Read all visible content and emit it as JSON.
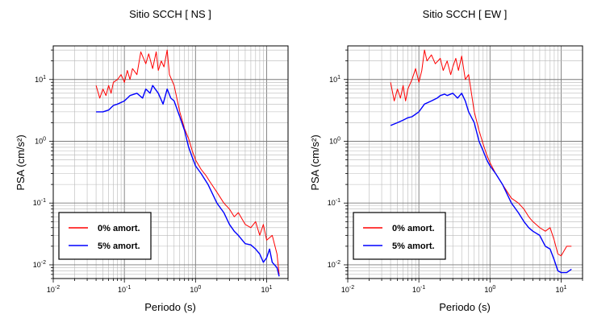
{
  "chart_data": [
    {
      "type": "line",
      "title": "Sitio SCCH [ NS ]",
      "xlabel": "Periodo (s)",
      "ylabel": "PSA (cm/s²)",
      "x_scale": "log",
      "y_scale": "log",
      "xlim": [
        0.01,
        20
      ],
      "ylim": [
        0.006,
        35
      ],
      "x_ticks": [
        {
          "base": "10",
          "exp": "-2"
        },
        {
          "base": "10",
          "exp": "-1"
        },
        {
          "base": "10",
          "exp": "0"
        },
        {
          "base": "10",
          "exp": "1"
        }
      ],
      "y_ticks": [
        {
          "base": "10",
          "exp": "-2"
        },
        {
          "base": "10",
          "exp": "-1"
        },
        {
          "base": "10",
          "exp": "0"
        },
        {
          "base": "10",
          "exp": "1"
        }
      ],
      "grid": true,
      "legend_position": "bottom-left",
      "series": [
        {
          "name": "0% amort.",
          "color": "#ff0000",
          "x": [
            0.04,
            0.045,
            0.05,
            0.055,
            0.06,
            0.065,
            0.07,
            0.08,
            0.09,
            0.1,
            0.11,
            0.12,
            0.13,
            0.15,
            0.17,
            0.2,
            0.22,
            0.25,
            0.28,
            0.3,
            0.33,
            0.36,
            0.4,
            0.43,
            0.5,
            0.6,
            0.7,
            0.8,
            0.9,
            1.0,
            1.2,
            1.4,
            1.6,
            2.0,
            2.5,
            3.0,
            3.5,
            4.0,
            5.0,
            6.0,
            7.0,
            8.0,
            9.0,
            10.0,
            12.0,
            14.0,
            15.0
          ],
          "y": [
            8.0,
            5.0,
            7.0,
            5.5,
            8.0,
            6.0,
            9.0,
            10.0,
            12.0,
            9.0,
            14.0,
            10.0,
            15.0,
            12.0,
            28.0,
            18.0,
            26.0,
            15.0,
            28.0,
            14.0,
            20.0,
            16.0,
            30.0,
            12.0,
            8.0,
            3.0,
            1.6,
            1.1,
            0.7,
            0.5,
            0.35,
            0.28,
            0.22,
            0.15,
            0.1,
            0.08,
            0.06,
            0.07,
            0.045,
            0.04,
            0.05,
            0.03,
            0.045,
            0.025,
            0.03,
            0.015,
            0.007
          ]
        },
        {
          "name": "5% amort.",
          "color": "#0000ff",
          "x": [
            0.04,
            0.05,
            0.06,
            0.07,
            0.08,
            0.1,
            0.12,
            0.15,
            0.18,
            0.2,
            0.23,
            0.25,
            0.3,
            0.35,
            0.4,
            0.45,
            0.5,
            0.6,
            0.7,
            0.8,
            0.9,
            1.0,
            1.2,
            1.5,
            2.0,
            2.5,
            3.0,
            3.5,
            4.0,
            5.0,
            6.0,
            7.0,
            8.0,
            9.0,
            10.0,
            11.0,
            12.0,
            14.0,
            15.0
          ],
          "y": [
            3.0,
            3.0,
            3.2,
            3.8,
            4.0,
            4.5,
            5.5,
            6.0,
            5.0,
            7.0,
            6.0,
            8.0,
            6.0,
            4.0,
            7.0,
            5.0,
            4.5,
            2.5,
            1.5,
            0.8,
            0.55,
            0.4,
            0.3,
            0.2,
            0.1,
            0.07,
            0.045,
            0.035,
            0.03,
            0.022,
            0.021,
            0.018,
            0.015,
            0.011,
            0.013,
            0.018,
            0.011,
            0.009,
            0.0065
          ]
        }
      ]
    },
    {
      "type": "line",
      "title": "Sitio SCCH [ EW ]",
      "xlabel": "Periodo (s)",
      "ylabel": "PSA (cm/s²)",
      "x_scale": "log",
      "y_scale": "log",
      "xlim": [
        0.01,
        20
      ],
      "ylim": [
        0.006,
        35
      ],
      "x_ticks": [
        {
          "base": "10",
          "exp": "-2"
        },
        {
          "base": "10",
          "exp": "-1"
        },
        {
          "base": "10",
          "exp": "0"
        },
        {
          "base": "10",
          "exp": "1"
        }
      ],
      "y_ticks": [
        {
          "base": "10",
          "exp": "-2"
        },
        {
          "base": "10",
          "exp": "-1"
        },
        {
          "base": "10",
          "exp": "0"
        },
        {
          "base": "10",
          "exp": "1"
        }
      ],
      "grid": true,
      "legend_position": "bottom-left",
      "series": [
        {
          "name": "0% amort.",
          "color": "#ff0000",
          "x": [
            0.04,
            0.045,
            0.05,
            0.055,
            0.06,
            0.065,
            0.07,
            0.08,
            0.09,
            0.1,
            0.11,
            0.12,
            0.13,
            0.15,
            0.17,
            0.2,
            0.22,
            0.25,
            0.28,
            0.3,
            0.33,
            0.36,
            0.4,
            0.45,
            0.5,
            0.6,
            0.7,
            0.8,
            0.9,
            1.0,
            1.2,
            1.5,
            2.0,
            2.5,
            3.0,
            3.5,
            4.0,
            5.0,
            6.0,
            7.0,
            8.0,
            9.0,
            10.0,
            12.0,
            14.0
          ],
          "y": [
            9.0,
            4.5,
            7.0,
            5.0,
            8.0,
            4.5,
            7.0,
            10.0,
            15.0,
            9.0,
            14.0,
            30.0,
            20.0,
            25.0,
            18.0,
            22.0,
            14.0,
            20.0,
            12.0,
            16.0,
            22.0,
            14.0,
            24.0,
            10.0,
            12.0,
            3.0,
            1.5,
            0.9,
            0.6,
            0.45,
            0.3,
            0.2,
            0.12,
            0.1,
            0.08,
            0.06,
            0.05,
            0.04,
            0.035,
            0.04,
            0.025,
            0.015,
            0.014,
            0.02,
            0.02
          ]
        },
        {
          "name": "5% amort.",
          "color": "#0000ff",
          "x": [
            0.04,
            0.05,
            0.06,
            0.07,
            0.08,
            0.1,
            0.12,
            0.15,
            0.18,
            0.2,
            0.23,
            0.25,
            0.3,
            0.35,
            0.4,
            0.45,
            0.5,
            0.6,
            0.7,
            0.8,
            0.9,
            1.0,
            1.2,
            1.5,
            2.0,
            2.5,
            3.0,
            3.5,
            4.0,
            5.0,
            6.0,
            7.0,
            8.0,
            9.0,
            10.0,
            12.0,
            14.0
          ],
          "y": [
            1.8,
            2.0,
            2.2,
            2.4,
            2.5,
            3.0,
            4.0,
            4.5,
            5.0,
            5.5,
            5.8,
            5.5,
            6.0,
            5.0,
            6.0,
            4.5,
            3.0,
            2.0,
            1.0,
            0.7,
            0.5,
            0.4,
            0.3,
            0.2,
            0.1,
            0.07,
            0.05,
            0.04,
            0.035,
            0.03,
            0.02,
            0.018,
            0.012,
            0.008,
            0.0075,
            0.0075,
            0.0085
          ]
        }
      ]
    }
  ]
}
